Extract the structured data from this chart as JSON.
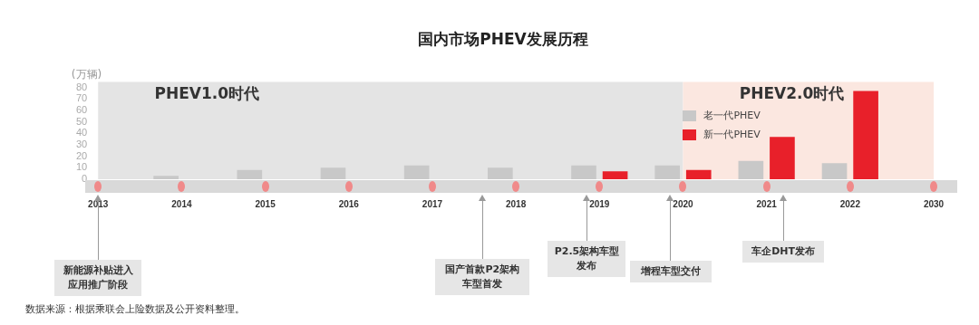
{
  "chart_data": {
    "type": "bar",
    "title": "国内市场PHEV发展历程",
    "ylabel": "(万辆)",
    "categories": [
      "2013",
      "2014",
      "2015",
      "2016",
      "2017",
      "2018",
      "2019",
      "2020",
      "2021",
      "2022",
      "2030"
    ],
    "series": [
      {
        "name": "老一代PHEV",
        "color": "#c8c8c8",
        "values": [
          null,
          3,
          8,
          10,
          12,
          10,
          12,
          12,
          16,
          14,
          null
        ]
      },
      {
        "name": "新一代PHEV",
        "color": "#e8202a",
        "values": [
          null,
          null,
          null,
          null,
          null,
          null,
          7,
          8,
          37,
          77,
          null
        ]
      }
    ],
    "ylim": [
      0,
      85
    ],
    "yticks": [
      0,
      10,
      20,
      30,
      40,
      50,
      60,
      70,
      80
    ],
    "grid": false,
    "legend": "top right",
    "bands": [
      {
        "axis": "x",
        "from": "2013",
        "to": "2020",
        "label": "PHEV1.0时代",
        "color": "#e4e4e4"
      },
      {
        "axis": "x",
        "from": "2020",
        "to": "2030",
        "label": "PHEV2.0时代",
        "color": "#fbe7e0"
      }
    ],
    "annotations": [
      "新能源补贴进入应用推广阶段",
      "国产首款P2架构车型首发",
      "P2.5架构车型发布",
      "增程车型交付",
      "车企DHT发布",
      "数据来源：根据乘联会上险数据及公开资料整理。"
    ]
  }
}
